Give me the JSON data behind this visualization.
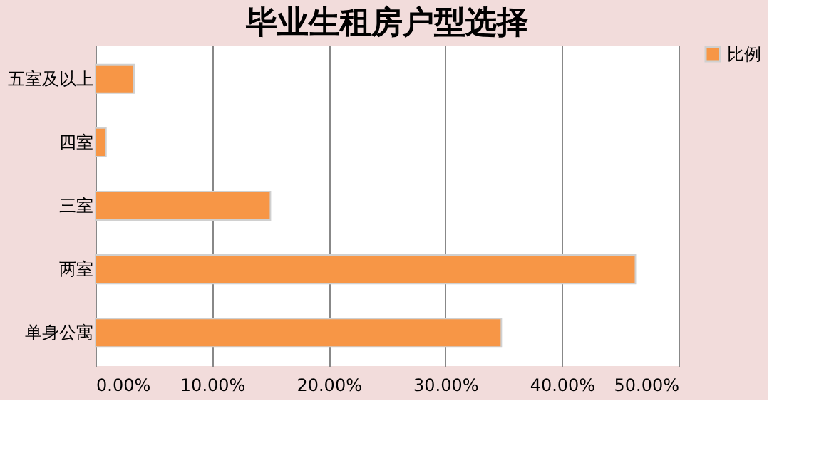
{
  "chart_data": {
    "type": "bar",
    "orientation": "horizontal",
    "title": "毕业生租房户型选择",
    "categories": [
      "五室及以上",
      "四室",
      "三室",
      "两室",
      "单身公寓"
    ],
    "series": [
      {
        "name": "比例",
        "color": "#f79646",
        "values": [
          3.3,
          0.9,
          15.0,
          46.3,
          34.8
        ]
      }
    ],
    "xlim": [
      0,
      50
    ],
    "xticks": [
      {
        "value": 0,
        "label": "0.00%"
      },
      {
        "value": 10,
        "label": "10.00%"
      },
      {
        "value": 20,
        "label": "20.00%"
      },
      {
        "value": 30,
        "label": "30.00%"
      },
      {
        "value": 40,
        "label": "40.00%"
      },
      {
        "value": 50,
        "label": "50.00%"
      }
    ],
    "grid": "x",
    "legend": "right"
  }
}
